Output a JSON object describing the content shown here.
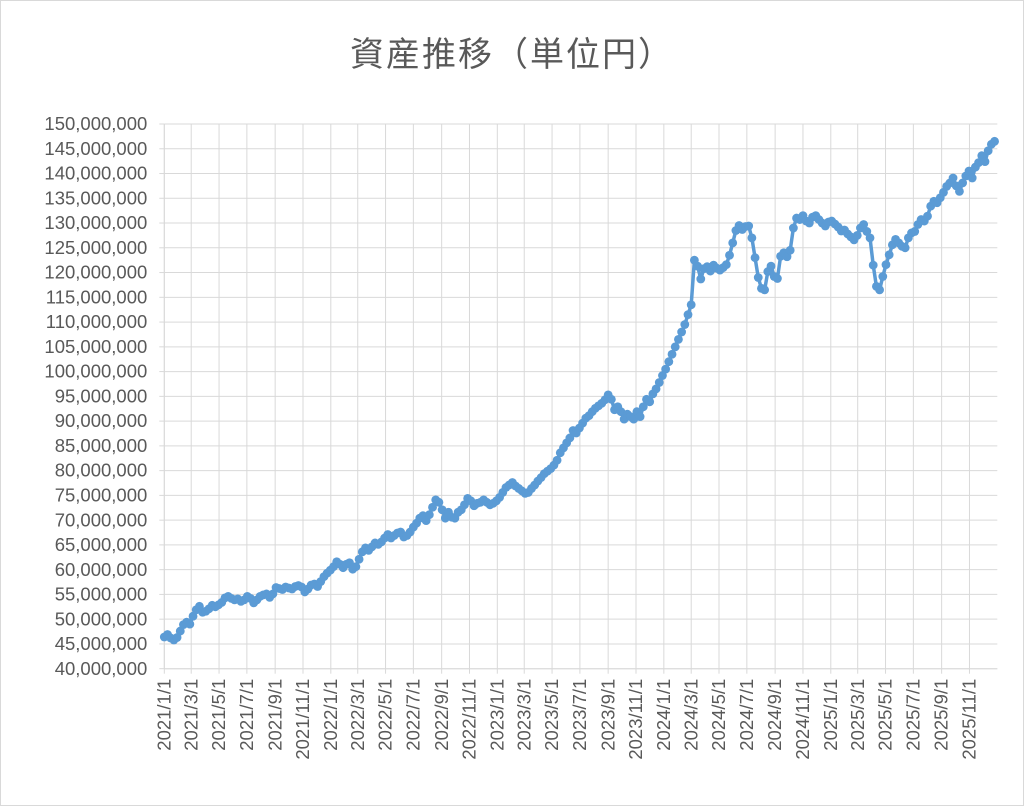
{
  "title": "資産推移（単位円）",
  "colors": {
    "series_line": "#5b9bd5",
    "gridline": "#d9d9d9",
    "axis_line": "#d9d9d9",
    "chart_border": "#d9d9d9",
    "tick_label": "#595959",
    "title_text": "#595959",
    "background": "#ffffff"
  },
  "chart_data": {
    "type": "line",
    "title": "資産推移（単位円）",
    "ylabel": "",
    "xlabel": "",
    "grid": true,
    "legend": "none",
    "marker": "circle",
    "y_axis": {
      "min": 40000000,
      "max": 150000000,
      "step": 5000000,
      "tick_labels": [
        "40,000,000",
        "45,000,000",
        "50,000,000",
        "55,000,000",
        "60,000,000",
        "65,000,000",
        "70,000,000",
        "75,000,000",
        "80,000,000",
        "85,000,000",
        "90,000,000",
        "95,000,000",
        "100,000,000",
        "105,000,000",
        "110,000,000",
        "115,000,000",
        "120,000,000",
        "125,000,000",
        "130,000,000",
        "135,000,000",
        "140,000,000",
        "145,000,000",
        "150,000,000"
      ]
    },
    "x_axis": {
      "start_date": "2021-01-01",
      "end_date": "2026-01-01",
      "tick_labels": [
        "2021/1/1",
        "2021/3/1",
        "2021/5/1",
        "2021/7/1",
        "2021/9/1",
        "2021/11/1",
        "2022/1/1",
        "2022/3/1",
        "2022/5/1",
        "2022/7/1",
        "2022/9/1",
        "2022/11/1",
        "2023/1/1",
        "2023/3/1",
        "2023/5/1",
        "2023/7/1",
        "2023/9/1",
        "2023/11/1",
        "2024/1/1",
        "2024/3/1",
        "2024/5/1",
        "2024/7/1",
        "2024/9/1",
        "2024/11/1",
        "2025/1/1",
        "2025/3/1",
        "2025/5/1",
        "2025/7/1",
        "2025/9/1",
        "2025/11/1"
      ]
    },
    "series": {
      "name": "資産推移",
      "value_unit": "millions_of_JPY",
      "sample_interval_days": 7,
      "first_point_date": "2021-01-01",
      "values_millions": [
        46.4,
        46.9,
        46.2,
        45.8,
        46.3,
        47.6,
        48.9,
        49.4,
        49.0,
        50.6,
        51.9,
        52.6,
        51.4,
        51.6,
        52.1,
        52.8,
        52.5,
        52.9,
        53.4,
        54.3,
        54.6,
        54.2,
        53.9,
        54.1,
        53.6,
        53.9,
        54.6,
        54.2,
        53.3,
        53.9,
        54.6,
        54.9,
        55.1,
        54.4,
        55.1,
        56.4,
        56.2,
        56.0,
        56.5,
        56.3,
        56.1,
        56.6,
        56.8,
        56.5,
        55.5,
        56.1,
        56.9,
        57.1,
        56.6,
        57.6,
        58.6,
        59.3,
        59.9,
        60.6,
        61.6,
        61.1,
        60.4,
        61.1,
        61.4,
        60.1,
        60.6,
        62.1,
        63.6,
        64.4,
        63.9,
        64.6,
        65.4,
        65.1,
        65.6,
        66.4,
        67.1,
        66.4,
        66.9,
        67.4,
        67.6,
        66.6,
        66.9,
        67.6,
        68.6,
        69.4,
        70.4,
        70.9,
        69.9,
        71.1,
        72.6,
        74.1,
        73.6,
        72.1,
        70.4,
        71.6,
        70.6,
        70.4,
        71.6,
        72.1,
        73.1,
        74.4,
        73.9,
        72.9,
        73.4,
        73.6,
        74.1,
        73.6,
        73.1,
        73.4,
        73.9,
        74.6,
        75.6,
        76.6,
        77.1,
        77.6,
        76.9,
        76.4,
        75.9,
        75.4,
        75.6,
        76.4,
        77.1,
        77.9,
        78.6,
        79.4,
        79.9,
        80.4,
        81.1,
        82.1,
        83.6,
        84.6,
        85.6,
        86.6,
        88.1,
        87.6,
        88.6,
        89.6,
        90.6,
        91.1,
        91.9,
        92.6,
        93.1,
        93.6,
        94.3,
        95.3,
        94.4,
        92.3,
        92.9,
        91.9,
        90.4,
        91.4,
        90.9,
        90.4,
        91.9,
        90.9,
        92.9,
        94.4,
        93.9,
        95.5,
        96.5,
        97.8,
        99.2,
        100.5,
        102.0,
        103.5,
        105.0,
        106.5,
        108.0,
        109.5,
        111.5,
        113.5,
        122.5,
        121.3,
        118.7,
        120.8,
        121.2,
        120.3,
        121.5,
        120.9,
        120.5,
        121.0,
        121.6,
        123.5,
        126.0,
        128.5,
        129.5,
        128.7,
        129.3,
        129.4,
        127.0,
        123.0,
        119.0,
        116.8,
        116.5,
        120.2,
        121.3,
        119.2,
        118.8,
        123.3,
        124.0,
        123.2,
        124.5,
        129.0,
        131.0,
        130.7,
        131.5,
        130.4,
        130.0,
        131.2,
        131.5,
        130.7,
        130.0,
        129.4,
        130.2,
        130.4,
        129.8,
        129.2,
        128.4,
        128.6,
        127.8,
        127.2,
        126.6,
        127.5,
        129.0,
        129.7,
        128.3,
        127.0,
        121.5,
        117.2,
        116.5,
        119.2,
        121.6,
        123.6,
        125.6,
        126.7,
        126.0,
        125.3,
        125.0,
        127.0,
        128.0,
        128.3,
        129.7,
        130.7,
        130.4,
        131.4,
        133.4,
        134.4,
        134.1,
        135.1,
        136.2,
        137.4,
        138.1,
        139.1,
        137.5,
        136.4,
        138.1,
        139.5,
        140.5,
        139.1,
        141.3,
        142.2,
        143.6,
        142.4,
        144.6,
        145.9,
        146.5
      ]
    }
  }
}
